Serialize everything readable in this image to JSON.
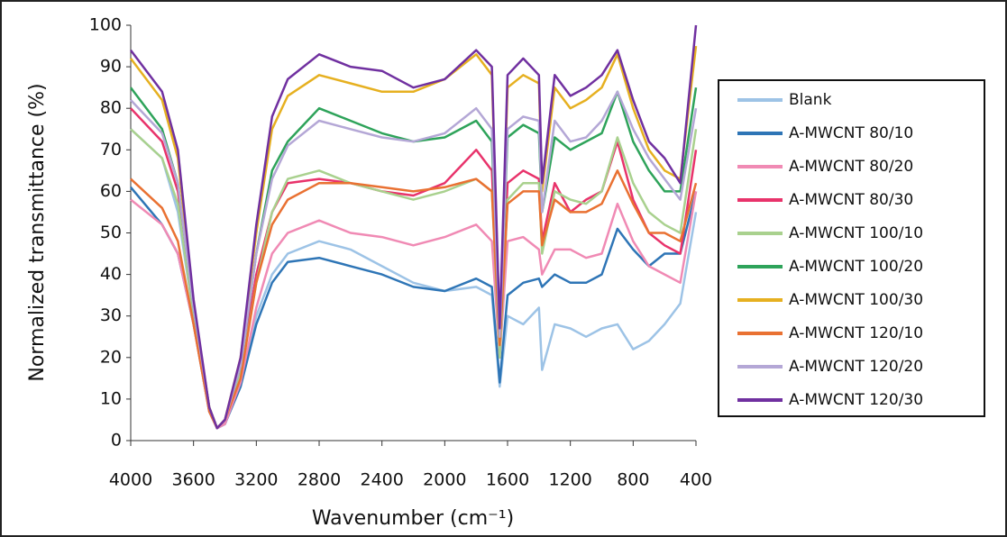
{
  "chart_data": {
    "type": "line",
    "x_label": "Wavenumber (cm⁻¹)",
    "y_label": "Normalized transmittance (%)",
    "x": [
      4000,
      3800,
      3700,
      3600,
      3500,
      3450,
      3400,
      3300,
      3200,
      3100,
      3000,
      2800,
      2600,
      2400,
      2200,
      2000,
      1800,
      1700,
      1650,
      1600,
      1500,
      1400,
      1380,
      1300,
      1200,
      1100,
      1000,
      900,
      800,
      700,
      600,
      500,
      400
    ],
    "xlim": [
      4000,
      400
    ],
    "xticks": [
      4000,
      3600,
      3200,
      2800,
      2400,
      2000,
      1600,
      1200,
      800,
      400
    ],
    "ylim": [
      0,
      100
    ],
    "yticks": [
      0,
      10,
      20,
      30,
      40,
      50,
      60,
      70,
      80,
      90,
      100
    ],
    "grid": false,
    "legend": "right",
    "series": [
      {
        "name": "Blank",
        "color": "#9dc3e6",
        "values": [
          75,
          68,
          55,
          30,
          8,
          3,
          4,
          14,
          30,
          40,
          45,
          48,
          46,
          42,
          38,
          36,
          37,
          35,
          13,
          30,
          28,
          32,
          17,
          28,
          27,
          25,
          27,
          28,
          22,
          24,
          28,
          33,
          55
        ]
      },
      {
        "name": "A-MWCNT 80/10",
        "color": "#2e75b6",
        "values": [
          61,
          52,
          45,
          28,
          7,
          3,
          4,
          13,
          28,
          38,
          43,
          44,
          42,
          40,
          37,
          36,
          39,
          37,
          14,
          35,
          38,
          39,
          37,
          40,
          38,
          38,
          40,
          51,
          46,
          42,
          45,
          45,
          60
        ]
      },
      {
        "name": "A-MWCNT 80/20",
        "color": "#f08ab4",
        "values": [
          58,
          52,
          45,
          28,
          7,
          3,
          4,
          14,
          32,
          45,
          50,
          53,
          50,
          49,
          47,
          49,
          52,
          48,
          20,
          48,
          49,
          46,
          40,
          46,
          46,
          44,
          45,
          57,
          48,
          42,
          40,
          38,
          60
        ]
      },
      {
        "name": "A-MWCNT 80/30",
        "color": "#e8336b",
        "values": [
          80,
          72,
          60,
          32,
          8,
          3,
          5,
          17,
          40,
          55,
          62,
          63,
          62,
          60,
          59,
          62,
          70,
          65,
          22,
          62,
          65,
          63,
          48,
          62,
          55,
          58,
          60,
          72,
          58,
          50,
          47,
          45,
          70
        ]
      },
      {
        "name": "A-MWCNT 100/10",
        "color": "#a9d18e",
        "values": [
          75,
          68,
          57,
          30,
          8,
          3,
          5,
          16,
          38,
          55,
          63,
          65,
          62,
          60,
          58,
          60,
          63,
          60,
          20,
          58,
          62,
          62,
          45,
          60,
          58,
          57,
          60,
          73,
          62,
          55,
          52,
          50,
          75
        ]
      },
      {
        "name": "A-MWCNT 100/20",
        "color": "#2ea35a",
        "values": [
          85,
          75,
          62,
          32,
          8,
          3,
          5,
          18,
          45,
          65,
          72,
          80,
          77,
          74,
          72,
          73,
          77,
          72,
          25,
          73,
          76,
          74,
          55,
          73,
          70,
          72,
          74,
          84,
          72,
          65,
          60,
          60,
          85
        ]
      },
      {
        "name": "A-MWCNT 100/30",
        "color": "#e6b020",
        "values": [
          92,
          82,
          68,
          33,
          8,
          3,
          5,
          20,
          50,
          75,
          83,
          88,
          86,
          84,
          84,
          87,
          93,
          88,
          25,
          85,
          88,
          86,
          60,
          85,
          80,
          82,
          85,
          93,
          80,
          70,
          65,
          63,
          95
        ]
      },
      {
        "name": "A-MWCNT 120/10",
        "color": "#e97132",
        "values": [
          63,
          56,
          48,
          28,
          7,
          3,
          5,
          15,
          38,
          52,
          58,
          62,
          62,
          61,
          60,
          61,
          63,
          60,
          23,
          57,
          60,
          60,
          47,
          58,
          55,
          55,
          57,
          65,
          57,
          50,
          50,
          48,
          62
        ]
      },
      {
        "name": "A-MWCNT 120/20",
        "color": "#b4a7d6",
        "values": [
          82,
          74,
          62,
          32,
          8,
          3,
          5,
          18,
          45,
          63,
          71,
          77,
          75,
          73,
          72,
          74,
          80,
          75,
          25,
          75,
          78,
          77,
          55,
          77,
          72,
          73,
          77,
          84,
          75,
          68,
          63,
          58,
          80
        ]
      },
      {
        "name": "A-MWCNT 120/30",
        "color": "#7030a0",
        "values": [
          94,
          84,
          70,
          34,
          8,
          3,
          5,
          20,
          52,
          78,
          87,
          93,
          90,
          89,
          85,
          87,
          94,
          90,
          27,
          88,
          92,
          88,
          62,
          88,
          83,
          85,
          88,
          94,
          82,
          72,
          68,
          62,
          100
        ]
      }
    ]
  }
}
